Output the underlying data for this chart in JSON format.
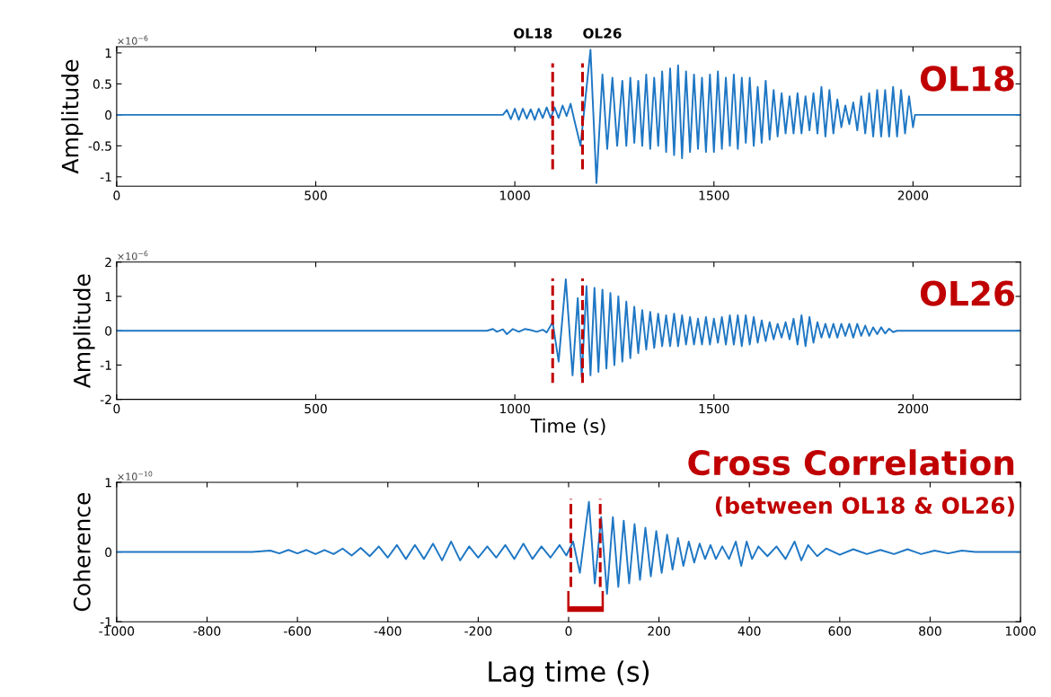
{
  "chart_data": [
    {
      "type": "line",
      "ylabel": "Amplitude",
      "xlim": [
        0,
        2270
      ],
      "ylim": [
        -1.15,
        1.1
      ],
      "xticks": [
        0,
        500,
        1000,
        1500,
        2000
      ],
      "yticks": [
        -1,
        -0.5,
        0,
        0.5,
        1
      ],
      "grid": false,
      "annotations": [
        "×10$^{−6}$",
        "OL18"
      ],
      "ref_lines": [
        {
          "axis": "x",
          "value": 1095,
          "label": "OL18",
          "color": "#c00000",
          "line_style": "dashed"
        },
        {
          "axis": "x",
          "value": 1170,
          "label": "OL26",
          "color": "#c00000",
          "line_style": "dashed"
        }
      ],
      "series": [
        {
          "color": "#1f77c4",
          "x": [
            0,
            970,
            980,
            990,
            1000,
            1010,
            1020,
            1030,
            1040,
            1050,
            1060,
            1070,
            1080,
            1090,
            1100,
            1110,
            1120,
            1130,
            1140,
            1150,
            1165,
            1190,
            1205,
            1220,
            1232,
            1245,
            1257,
            1270,
            1280,
            1290,
            1300,
            1310,
            1320,
            1330,
            1340,
            1350,
            1360,
            1370,
            1380,
            1390,
            1400,
            1410,
            1420,
            1430,
            1440,
            1450,
            1460,
            1470,
            1480,
            1490,
            1500,
            1510,
            1520,
            1530,
            1540,
            1550,
            1560,
            1570,
            1580,
            1590,
            1600,
            1610,
            1620,
            1630,
            1640,
            1650,
            1660,
            1670,
            1680,
            1690,
            1700,
            1710,
            1720,
            1730,
            1740,
            1750,
            1760,
            1770,
            1780,
            1790,
            1800,
            1810,
            1820,
            1830,
            1840,
            1850,
            1860,
            1870,
            1880,
            1890,
            1900,
            1910,
            1920,
            1930,
            1940,
            1950,
            1960,
            1970,
            1980,
            1990,
            2000,
            2005,
            2270
          ],
          "values": [
            0,
            0,
            0.08,
            -0.07,
            0.1,
            -0.08,
            0.1,
            -0.06,
            0.09,
            -0.08,
            0.1,
            -0.05,
            0.12,
            -0.05,
            0.12,
            -0.05,
            0.15,
            -0.02,
            0.18,
            -0.1,
            -0.5,
            1.05,
            -1.1,
            0.65,
            -0.55,
            0.6,
            -0.5,
            0.55,
            -0.5,
            0.6,
            -0.45,
            0.55,
            -0.5,
            0.65,
            -0.55,
            0.6,
            -0.5,
            0.7,
            -0.6,
            0.75,
            -0.65,
            0.8,
            -0.7,
            0.7,
            -0.6,
            0.65,
            -0.55,
            0.6,
            -0.6,
            0.65,
            -0.6,
            0.7,
            -0.55,
            0.6,
            -0.5,
            0.65,
            -0.55,
            0.6,
            -0.45,
            0.6,
            -0.5,
            0.45,
            -0.45,
            0.55,
            -0.4,
            0.4,
            -0.35,
            0.35,
            -0.3,
            0.3,
            -0.3,
            0.35,
            -0.3,
            0.3,
            -0.25,
            0.35,
            -0.3,
            0.45,
            -0.35,
            0.4,
            -0.3,
            0.25,
            -0.2,
            0.15,
            -0.15,
            0.2,
            -0.25,
            0.3,
            -0.3,
            0.35,
            -0.35,
            0.4,
            -0.35,
            0.4,
            -0.35,
            0.45,
            -0.35,
            0.4,
            -0.3,
            0.3,
            -0.2,
            0,
            0
          ]
        }
      ]
    },
    {
      "type": "line",
      "ylabel": "Amplitude",
      "xlabel": "Time (s)",
      "xlim": [
        0,
        2270
      ],
      "ylim": [
        -2,
        2
      ],
      "xticks": [
        0,
        500,
        1000,
        1500,
        2000
      ],
      "yticks": [
        -2,
        -1,
        0,
        1,
        2
      ],
      "grid": false,
      "annotations": [
        "×10$^{−6}$",
        "OL26"
      ],
      "ref_lines": [
        {
          "axis": "x",
          "value": 1095,
          "color": "#c00000",
          "line_style": "dashed"
        },
        {
          "axis": "x",
          "value": 1170,
          "color": "#c00000",
          "line_style": "dashed"
        }
      ],
      "series": [
        {
          "color": "#1f77c4",
          "x": [
            0,
            930,
            945,
            955,
            970,
            980,
            995,
            1010,
            1025,
            1040,
            1055,
            1070,
            1080,
            1095,
            1110,
            1128,
            1145,
            1158,
            1168,
            1180,
            1190,
            1200,
            1210,
            1220,
            1230,
            1240,
            1250,
            1260,
            1270,
            1280,
            1290,
            1300,
            1310,
            1320,
            1330,
            1340,
            1350,
            1360,
            1370,
            1380,
            1390,
            1400,
            1410,
            1420,
            1430,
            1440,
            1450,
            1460,
            1470,
            1480,
            1490,
            1500,
            1510,
            1520,
            1530,
            1540,
            1550,
            1560,
            1570,
            1580,
            1590,
            1600,
            1610,
            1620,
            1630,
            1640,
            1650,
            1660,
            1670,
            1680,
            1690,
            1700,
            1710,
            1720,
            1730,
            1740,
            1750,
            1760,
            1770,
            1780,
            1790,
            1800,
            1810,
            1820,
            1830,
            1840,
            1850,
            1860,
            1870,
            1880,
            1890,
            1900,
            1910,
            1920,
            1930,
            1940,
            1950,
            1960,
            2270
          ],
          "values": [
            0,
            0,
            0.05,
            -0.03,
            0.04,
            -0.1,
            0.05,
            -0.03,
            0.05,
            0.02,
            -0.03,
            0.03,
            -0.05,
            0.25,
            -0.9,
            1.5,
            -1.3,
            0.95,
            -1.35,
            1.3,
            -1.3,
            1.25,
            -1.2,
            1.2,
            -1.1,
            1.1,
            -1.0,
            1.0,
            -0.9,
            0.85,
            -0.8,
            0.7,
            -0.65,
            0.6,
            -0.55,
            0.55,
            -0.5,
            0.5,
            -0.45,
            0.45,
            -0.45,
            0.5,
            -0.45,
            0.45,
            -0.4,
            0.4,
            -0.4,
            0.35,
            -0.4,
            0.4,
            -0.4,
            0.35,
            -0.35,
            0.4,
            -0.4,
            0.45,
            -0.4,
            0.45,
            -0.45,
            0.45,
            -0.4,
            0.4,
            -0.35,
            0.3,
            -0.3,
            0.25,
            -0.25,
            0.2,
            -0.2,
            0.25,
            -0.25,
            0.35,
            -0.4,
            0.45,
            -0.45,
            0.4,
            -0.35,
            0.25,
            -0.2,
            0.2,
            -0.2,
            0.2,
            -0.2,
            0.2,
            -0.15,
            0.2,
            -0.2,
            0.2,
            -0.15,
            0.15,
            -0.15,
            0.1,
            -0.1,
            0.1,
            -0.08,
            0.06,
            -0.04,
            0,
            0
          ]
        }
      ]
    },
    {
      "type": "line",
      "ylabel": "Coherence",
      "xlabel": "Lag time (s)",
      "xlim": [
        -1000,
        1000
      ],
      "ylim": [
        -1,
        1
      ],
      "xticks": [
        -1000,
        -800,
        -600,
        -400,
        -200,
        0,
        200,
        400,
        600,
        800,
        1000
      ],
      "yticks": [
        -1,
        0,
        1
      ],
      "grid": false,
      "annotations": [
        "×10$^{−10}$",
        "Cross Correlation",
        "(between OL18 & OL26)"
      ],
      "ref_lines": [
        {
          "axis": "x",
          "value": 5,
          "color": "#c00000",
          "line_style": "dashed"
        },
        {
          "axis": "x",
          "value": 70,
          "color": "#c00000",
          "line_style": "dashed"
        }
      ],
      "series": [
        {
          "color": "#1f77c4",
          "x": [
            -1000,
            -700,
            -660,
            -640,
            -620,
            -600,
            -580,
            -560,
            -540,
            -520,
            -500,
            -480,
            -460,
            -440,
            -420,
            -400,
            -380,
            -360,
            -340,
            -320,
            -300,
            -280,
            -260,
            -240,
            -220,
            -200,
            -180,
            -160,
            -140,
            -120,
            -100,
            -80,
            -60,
            -40,
            -20,
            -5,
            10,
            25,
            45,
            58,
            72,
            85,
            98,
            110,
            122,
            134,
            146,
            158,
            170,
            182,
            194,
            206,
            218,
            230,
            242,
            254,
            266,
            278,
            290,
            302,
            314,
            326,
            340,
            355,
            370,
            382,
            394,
            406,
            420,
            440,
            460,
            480,
            500,
            515,
            530,
            550,
            570,
            600,
            630,
            660,
            690,
            720,
            750,
            780,
            810,
            840,
            870,
            900,
            1000
          ],
          "values": [
            0,
            0,
            0.02,
            -0.02,
            0.03,
            -0.02,
            0.03,
            -0.03,
            0.03,
            -0.03,
            0.05,
            -0.05,
            0.06,
            -0.06,
            0.08,
            -0.08,
            0.1,
            -0.1,
            0.1,
            -0.1,
            0.12,
            -0.12,
            0.15,
            -0.12,
            0.08,
            -0.08,
            0.08,
            -0.08,
            0.1,
            -0.1,
            0.12,
            -0.1,
            0.08,
            -0.08,
            0.1,
            -0.05,
            0.15,
            -0.3,
            0.72,
            -0.45,
            0.5,
            -0.6,
            0.5,
            -0.5,
            0.45,
            -0.45,
            0.4,
            -0.4,
            0.35,
            -0.35,
            0.3,
            -0.3,
            0.25,
            -0.25,
            0.2,
            -0.2,
            0.15,
            -0.15,
            0.12,
            -0.1,
            0.1,
            -0.1,
            0.08,
            -0.1,
            0.15,
            -0.2,
            0.15,
            -0.1,
            0.08,
            -0.06,
            0.08,
            -0.1,
            0.15,
            -0.12,
            0.1,
            -0.06,
            0.05,
            -0.04,
            0.04,
            -0.03,
            0.03,
            -0.03,
            0.04,
            -0.03,
            0.02,
            -0.02,
            0.02,
            0,
            0
          ]
        }
      ]
    }
  ]
}
